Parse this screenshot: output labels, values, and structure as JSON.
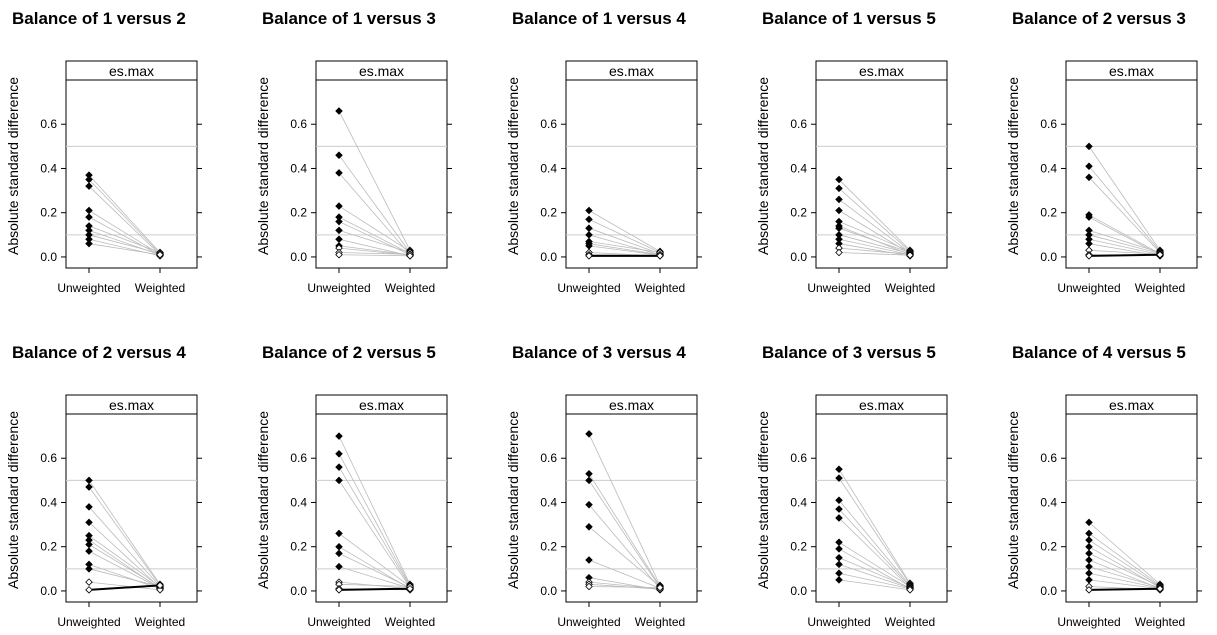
{
  "chart_data": [
    {
      "type": "line",
      "title": "Balance of 1 versus 2",
      "strip": "es.max",
      "ylabel": "Absolute standard difference",
      "categories": [
        "Unweighted",
        "Weighted"
      ],
      "yticks": [
        0.0,
        0.2,
        0.4,
        0.6
      ],
      "ylim": [
        -0.05,
        0.8
      ],
      "reference_lines": [
        0.1,
        0.5
      ],
      "pairs": [
        [
          0.37,
          0.02
        ],
        [
          0.35,
          0.015
        ],
        [
          0.32,
          0.01
        ],
        [
          0.21,
          0.012
        ],
        [
          0.18,
          0.008
        ],
        [
          0.14,
          0.02
        ],
        [
          0.12,
          0.01
        ],
        [
          0.1,
          0.015
        ],
        [
          0.08,
          0.005
        ],
        [
          0.06,
          0.01
        ]
      ],
      "bold_pairs": []
    },
    {
      "type": "line",
      "title": "Balance of 1 versus 3",
      "strip": "es.max",
      "ylabel": "Absolute standard difference",
      "categories": [
        "Unweighted",
        "Weighted"
      ],
      "yticks": [
        0.0,
        0.2,
        0.4,
        0.6
      ],
      "ylim": [
        -0.05,
        0.8
      ],
      "reference_lines": [
        0.1,
        0.5
      ],
      "pairs": [
        [
          0.66,
          0.03
        ],
        [
          0.46,
          0.02
        ],
        [
          0.38,
          0.01
        ],
        [
          0.23,
          0.025
        ],
        [
          0.18,
          0.015
        ],
        [
          0.16,
          0.01
        ],
        [
          0.12,
          0.02
        ],
        [
          0.08,
          0.005
        ],
        [
          0.05,
          0.01
        ],
        [
          0.04,
          0.008
        ],
        [
          0.02,
          0.012
        ],
        [
          0.01,
          0.005
        ]
      ],
      "bold_pairs": []
    },
    {
      "type": "line",
      "title": "Balance of 1 versus 4",
      "strip": "es.max",
      "ylabel": "Absolute standard difference",
      "categories": [
        "Unweighted",
        "Weighted"
      ],
      "yticks": [
        0.0,
        0.2,
        0.4,
        0.6
      ],
      "ylim": [
        -0.05,
        0.8
      ],
      "reference_lines": [
        0.1,
        0.5
      ],
      "pairs": [
        [
          0.21,
          0.025
        ],
        [
          0.17,
          0.02
        ],
        [
          0.13,
          0.015
        ],
        [
          0.1,
          0.01
        ],
        [
          0.07,
          0.02
        ],
        [
          0.06,
          0.01
        ],
        [
          0.05,
          0.008
        ],
        [
          0.02,
          0.005
        ],
        [
          0.01,
          0.01
        ]
      ],
      "bold_pairs": [
        [
          0.005,
          0.005
        ]
      ]
    },
    {
      "type": "line",
      "title": "Balance of 1 versus 5",
      "strip": "es.max",
      "ylabel": "Absolute standard difference",
      "categories": [
        "Unweighted",
        "Weighted"
      ],
      "yticks": [
        0.0,
        0.2,
        0.4,
        0.6
      ],
      "ylim": [
        -0.05,
        0.8
      ],
      "reference_lines": [
        0.1,
        0.5
      ],
      "pairs": [
        [
          0.35,
          0.03
        ],
        [
          0.31,
          0.025
        ],
        [
          0.26,
          0.02
        ],
        [
          0.21,
          0.015
        ],
        [
          0.16,
          0.025
        ],
        [
          0.14,
          0.01
        ],
        [
          0.13,
          0.02
        ],
        [
          0.1,
          0.015
        ],
        [
          0.08,
          0.01
        ],
        [
          0.06,
          0.005
        ],
        [
          0.04,
          0.012
        ],
        [
          0.02,
          0.008
        ]
      ],
      "bold_pairs": []
    },
    {
      "type": "line",
      "title": "Balance of 2 versus 3",
      "strip": "es.max",
      "ylabel": "Absolute standard difference",
      "categories": [
        "Unweighted",
        "Weighted"
      ],
      "yticks": [
        0.0,
        0.2,
        0.4,
        0.6
      ],
      "ylim": [
        -0.05,
        0.8
      ],
      "reference_lines": [
        0.1,
        0.5
      ],
      "pairs": [
        [
          0.5,
          0.03
        ],
        [
          0.41,
          0.025
        ],
        [
          0.36,
          0.02
        ],
        [
          0.19,
          0.015
        ],
        [
          0.18,
          0.01
        ],
        [
          0.12,
          0.02
        ],
        [
          0.1,
          0.015
        ],
        [
          0.08,
          0.01
        ],
        [
          0.06,
          0.005
        ],
        [
          0.03,
          0.012
        ],
        [
          0.01,
          0.008
        ]
      ],
      "bold_pairs": [
        [
          0.005,
          0.01
        ]
      ]
    },
    {
      "type": "line",
      "title": "Balance of 2 versus 4",
      "strip": "es.max",
      "ylabel": "Absolute standard difference",
      "categories": [
        "Unweighted",
        "Weighted"
      ],
      "yticks": [
        0.0,
        0.2,
        0.4,
        0.6
      ],
      "ylim": [
        -0.05,
        0.8
      ],
      "reference_lines": [
        0.1,
        0.5
      ],
      "pairs": [
        [
          0.5,
          0.03
        ],
        [
          0.47,
          0.025
        ],
        [
          0.38,
          0.02
        ],
        [
          0.31,
          0.015
        ],
        [
          0.25,
          0.02
        ],
        [
          0.23,
          0.01
        ],
        [
          0.21,
          0.015
        ],
        [
          0.18,
          0.012
        ],
        [
          0.12,
          0.01
        ],
        [
          0.1,
          0.02
        ],
        [
          0.04,
          0.005
        ]
      ],
      "bold_pairs": [
        [
          0.005,
          0.025
        ]
      ]
    },
    {
      "type": "line",
      "title": "Balance of 2 versus 5",
      "strip": "es.max",
      "ylabel": "Absolute standard difference",
      "categories": [
        "Unweighted",
        "Weighted"
      ],
      "yticks": [
        0.0,
        0.2,
        0.4,
        0.6
      ],
      "ylim": [
        -0.05,
        0.8
      ],
      "reference_lines": [
        0.1,
        0.5
      ],
      "pairs": [
        [
          0.7,
          0.03
        ],
        [
          0.62,
          0.025
        ],
        [
          0.56,
          0.02
        ],
        [
          0.5,
          0.015
        ],
        [
          0.26,
          0.02
        ],
        [
          0.2,
          0.01
        ],
        [
          0.17,
          0.015
        ],
        [
          0.11,
          0.012
        ],
        [
          0.04,
          0.01
        ],
        [
          0.03,
          0.02
        ],
        [
          0.01,
          0.005
        ]
      ],
      "bold_pairs": [
        [
          0.005,
          0.01
        ]
      ]
    },
    {
      "type": "line",
      "title": "Balance of 3 versus 4",
      "strip": "es.max",
      "ylabel": "Absolute standard difference",
      "categories": [
        "Unweighted",
        "Weighted"
      ],
      "yticks": [
        0.0,
        0.2,
        0.4,
        0.6
      ],
      "ylim": [
        -0.05,
        0.8
      ],
      "reference_lines": [
        0.1,
        0.5
      ],
      "pairs": [
        [
          0.71,
          0.025
        ],
        [
          0.53,
          0.02
        ],
        [
          0.5,
          0.015
        ],
        [
          0.39,
          0.01
        ],
        [
          0.29,
          0.02
        ],
        [
          0.14,
          0.012
        ],
        [
          0.06,
          0.005
        ],
        [
          0.04,
          0.01
        ],
        [
          0.03,
          0.008
        ],
        [
          0.02,
          0.015
        ]
      ],
      "bold_pairs": []
    },
    {
      "type": "line",
      "title": "Balance of 3 versus 5",
      "strip": "es.max",
      "ylabel": "Absolute standard difference",
      "categories": [
        "Unweighted",
        "Weighted"
      ],
      "yticks": [
        0.0,
        0.2,
        0.4,
        0.6
      ],
      "ylim": [
        -0.05,
        0.8
      ],
      "reference_lines": [
        0.1,
        0.5
      ],
      "pairs": [
        [
          0.55,
          0.035
        ],
        [
          0.51,
          0.03
        ],
        [
          0.41,
          0.025
        ],
        [
          0.37,
          0.02
        ],
        [
          0.33,
          0.015
        ],
        [
          0.22,
          0.02
        ],
        [
          0.19,
          0.01
        ],
        [
          0.15,
          0.015
        ],
        [
          0.12,
          0.012
        ],
        [
          0.08,
          0.01
        ],
        [
          0.05,
          0.005
        ]
      ],
      "bold_pairs": []
    },
    {
      "type": "line",
      "title": "Balance of 4 versus 5",
      "strip": "es.max",
      "ylabel": "Absolute standard difference",
      "categories": [
        "Unweighted",
        "Weighted"
      ],
      "yticks": [
        0.0,
        0.2,
        0.4,
        0.6
      ],
      "ylim": [
        -0.05,
        0.8
      ],
      "reference_lines": [
        0.1,
        0.5
      ],
      "pairs": [
        [
          0.31,
          0.03
        ],
        [
          0.26,
          0.025
        ],
        [
          0.23,
          0.02
        ],
        [
          0.2,
          0.015
        ],
        [
          0.17,
          0.02
        ],
        [
          0.14,
          0.01
        ],
        [
          0.11,
          0.015
        ],
        [
          0.08,
          0.012
        ],
        [
          0.05,
          0.01
        ],
        [
          0.02,
          0.005
        ]
      ],
      "bold_pairs": [
        [
          0.005,
          0.01
        ]
      ]
    }
  ]
}
